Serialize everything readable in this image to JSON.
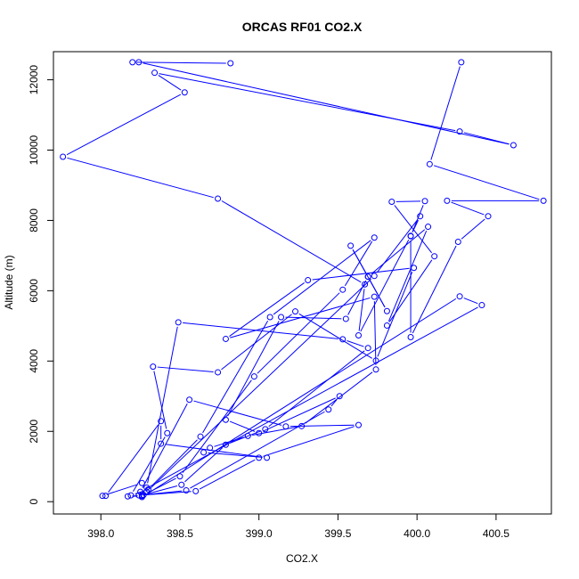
{
  "chart_data": {
    "type": "line",
    "title": "ORCAS RF01 CO2.X",
    "xlabel": "CO2.X",
    "ylabel": "Altitude (m)",
    "xlim": [
      397.7,
      400.85
    ],
    "ylim": [
      -350,
      12800
    ],
    "x_ticks": [
      398.0,
      398.5,
      399.0,
      399.5,
      400.0,
      400.5
    ],
    "x_tick_labels": [
      "398.0",
      "398.5",
      "399.0",
      "399.5",
      "400.0",
      "400.5"
    ],
    "y_ticks": [
      0,
      2000,
      4000,
      6000,
      8000,
      10000,
      12000
    ],
    "y_tick_labels": [
      "0",
      "2000",
      "4000",
      "6000",
      "8000",
      "10000",
      "12000"
    ],
    "grid": false,
    "series_color": "#0000ff",
    "series": [
      {
        "marker": "open-circle",
        "points": [
          [
            400.28,
            12500
          ],
          [
            400.08,
            9600
          ],
          [
            400.8,
            8560
          ],
          [
            400.19,
            8560
          ],
          [
            400.45,
            8120
          ],
          [
            400.26,
            7390
          ],
          [
            399.96,
            4680
          ],
          [
            399.96,
            7550
          ],
          [
            400.05,
            8550
          ],
          [
            399.84,
            8530
          ],
          [
            400.11,
            6980
          ],
          [
            399.81,
            5010
          ],
          [
            400.07,
            7820
          ],
          [
            399.69,
            6400
          ],
          [
            399.81,
            5420
          ],
          [
            399.58,
            7280
          ],
          [
            399.69,
            6400
          ],
          [
            399.55,
            5200
          ],
          [
            399.14,
            5250
          ],
          [
            398.79,
            2330
          ],
          [
            399.0,
            1950
          ],
          [
            399.51,
            3000
          ],
          [
            399.44,
            2620
          ],
          [
            398.54,
            320
          ],
          [
            398.24,
            180
          ],
          [
            398.6,
            300
          ],
          [
            399.0,
            1250
          ],
          [
            399.63,
            2180
          ],
          [
            399.17,
            2140
          ],
          [
            398.56,
            2900
          ],
          [
            398.25,
            280
          ],
          [
            400.41,
            5590
          ],
          [
            400.27,
            5840
          ],
          [
            398.26,
            130
          ],
          [
            398.26,
            160
          ],
          [
            398.17,
            150
          ],
          [
            398.26,
            180
          ],
          [
            398.51,
            480
          ],
          [
            398.79,
            1620
          ],
          [
            399.04,
            2060
          ],
          [
            399.69,
            4370
          ],
          [
            399.53,
            4620
          ],
          [
            398.49,
            5100
          ],
          [
            398.29,
            400
          ],
          [
            398.26,
            530
          ],
          [
            398.01,
            165
          ],
          [
            398.03,
            165
          ],
          [
            398.38,
            2290
          ],
          [
            398.38,
            1650
          ],
          [
            399.05,
            1250
          ],
          [
            398.65,
            1400
          ],
          [
            398.69,
            1530
          ],
          [
            398.93,
            1870
          ],
          [
            399.27,
            2150
          ],
          [
            399.74,
            3760
          ],
          [
            399.73,
            5830
          ],
          [
            398.79,
            4630
          ],
          [
            399.31,
            6300
          ],
          [
            399.98,
            6650
          ],
          [
            399.74,
            4010
          ],
          [
            399.23,
            5410
          ],
          [
            398.74,
            3680
          ],
          [
            398.33,
            3840
          ],
          [
            398.42,
            1950
          ],
          [
            398.19,
            180
          ],
          [
            398.3,
            350
          ],
          [
            398.63,
            1850
          ],
          [
            399.07,
            5250
          ],
          [
            399.73,
            7510
          ],
          [
            399.53,
            6030
          ],
          [
            398.97,
            3560
          ],
          [
            398.5,
            720
          ],
          [
            398.27,
            190
          ],
          [
            398.29,
            280
          ],
          [
            399.73,
            6420
          ],
          [
            400.02,
            8120
          ],
          [
            399.96,
            7560
          ],
          [
            399.63,
            4730
          ],
          [
            399.67,
            6180
          ],
          [
            398.74,
            8620
          ],
          [
            397.76,
            9810
          ],
          [
            398.53,
            11640
          ],
          [
            398.34,
            12200
          ],
          [
            400.27,
            10530
          ],
          [
            400.61,
            10140
          ],
          [
            398.24,
            12500
          ],
          [
            398.2,
            12500
          ],
          [
            398.82,
            12470
          ]
        ]
      }
    ]
  }
}
